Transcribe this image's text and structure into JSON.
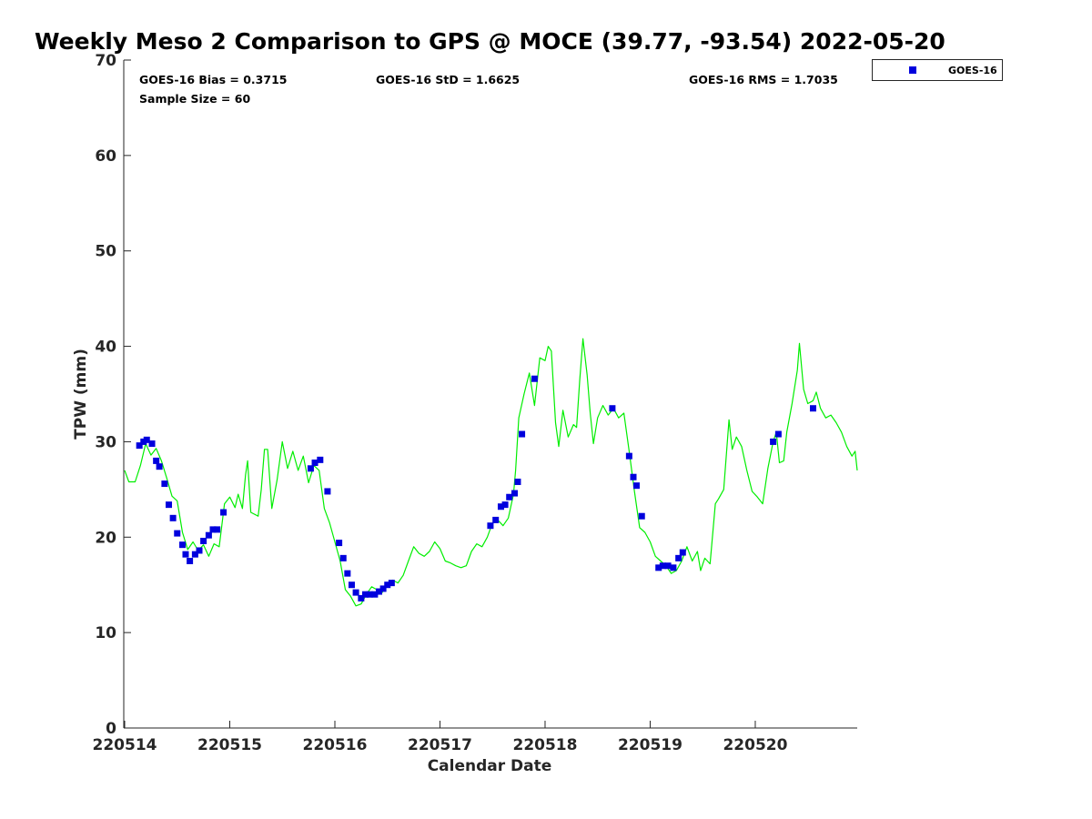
{
  "chart_data": {
    "type": "line+scatter",
    "title": "Weekly Meso 2 Comparison to GPS @ MOCE (39.77, -93.54) 2022-05-20",
    "xlabel": "Calendar Date",
    "ylabel": "TPW (mm)",
    "xlim": [
      0,
      6.97
    ],
    "ylim": [
      0,
      70
    ],
    "x_ticks": [
      {
        "value": 0,
        "label": "220514"
      },
      {
        "value": 1,
        "label": "220515"
      },
      {
        "value": 2,
        "label": "220516"
      },
      {
        "value": 3,
        "label": "220517"
      },
      {
        "value": 4,
        "label": "220518"
      },
      {
        "value": 5,
        "label": "220519"
      },
      {
        "value": 6,
        "label": "220520"
      }
    ],
    "y_ticks": [
      {
        "value": 0,
        "label": "0"
      },
      {
        "value": 10,
        "label": "10"
      },
      {
        "value": 20,
        "label": "20"
      },
      {
        "value": 30,
        "label": "30"
      },
      {
        "value": 40,
        "label": "40"
      },
      {
        "value": 50,
        "label": "50"
      },
      {
        "value": 60,
        "label": "60"
      },
      {
        "value": 70,
        "label": "70"
      }
    ],
    "stats": {
      "bias": "GOES-16 Bias = 0.3715",
      "std": "GOES-16 StD = 1.6625",
      "rms": "GOES-16 RMS = 1.7035",
      "sample": "Sample Size = 60"
    },
    "legend": {
      "label": "GOES-16",
      "position": "top-right-outside"
    },
    "colors": {
      "gps_line": "#00ee00",
      "goes_marker": "#0000dd",
      "axis": "#262626"
    },
    "series": [
      {
        "name": "GPS",
        "kind": "line",
        "points": [
          [
            0.0,
            27.0
          ],
          [
            0.04,
            25.8
          ],
          [
            0.1,
            25.8
          ],
          [
            0.15,
            27.5
          ],
          [
            0.2,
            29.8
          ],
          [
            0.25,
            28.6
          ],
          [
            0.3,
            29.3
          ],
          [
            0.35,
            28.0
          ],
          [
            0.4,
            26.2
          ],
          [
            0.45,
            24.3
          ],
          [
            0.5,
            23.8
          ],
          [
            0.55,
            20.5
          ],
          [
            0.6,
            18.7
          ],
          [
            0.65,
            19.5
          ],
          [
            0.7,
            18.6
          ],
          [
            0.75,
            19.2
          ],
          [
            0.8,
            18.0
          ],
          [
            0.85,
            19.3
          ],
          [
            0.9,
            19.0
          ],
          [
            0.95,
            23.5
          ],
          [
            1.0,
            24.2
          ],
          [
            1.05,
            23.1
          ],
          [
            1.08,
            24.5
          ],
          [
            1.12,
            23.0
          ],
          [
            1.15,
            26.5
          ],
          [
            1.17,
            28.0
          ],
          [
            1.2,
            22.6
          ],
          [
            1.27,
            22.2
          ],
          [
            1.3,
            25.0
          ],
          [
            1.33,
            29.2
          ],
          [
            1.36,
            29.2
          ],
          [
            1.4,
            23.0
          ],
          [
            1.45,
            26.0
          ],
          [
            1.5,
            30.0
          ],
          [
            1.55,
            27.2
          ],
          [
            1.6,
            29.0
          ],
          [
            1.65,
            27.0
          ],
          [
            1.7,
            28.5
          ],
          [
            1.75,
            25.7
          ],
          [
            1.8,
            27.5
          ],
          [
            1.85,
            27.0
          ],
          [
            1.9,
            23.0
          ],
          [
            1.95,
            21.5
          ],
          [
            2.0,
            19.5
          ],
          [
            2.05,
            17.5
          ],
          [
            2.1,
            14.5
          ],
          [
            2.15,
            13.8
          ],
          [
            2.2,
            12.8
          ],
          [
            2.25,
            13.0
          ],
          [
            2.3,
            14.0
          ],
          [
            2.35,
            14.8
          ],
          [
            2.4,
            14.5
          ],
          [
            2.45,
            14.2
          ],
          [
            2.5,
            15.0
          ],
          [
            2.55,
            15.5
          ],
          [
            2.6,
            15.2
          ],
          [
            2.65,
            16.0
          ],
          [
            2.7,
            17.5
          ],
          [
            2.75,
            19.0
          ],
          [
            2.8,
            18.3
          ],
          [
            2.85,
            18.0
          ],
          [
            2.9,
            18.5
          ],
          [
            2.95,
            19.5
          ],
          [
            3.0,
            18.8
          ],
          [
            3.05,
            17.5
          ],
          [
            3.1,
            17.3
          ],
          [
            3.15,
            17.0
          ],
          [
            3.2,
            16.8
          ],
          [
            3.25,
            17.0
          ],
          [
            3.3,
            18.5
          ],
          [
            3.35,
            19.3
          ],
          [
            3.4,
            19.0
          ],
          [
            3.45,
            20.0
          ],
          [
            3.5,
            21.5
          ],
          [
            3.55,
            21.8
          ],
          [
            3.6,
            21.2
          ],
          [
            3.65,
            22.0
          ],
          [
            3.7,
            24.5
          ],
          [
            3.72,
            27.0
          ],
          [
            3.75,
            32.5
          ],
          [
            3.8,
            35.0
          ],
          [
            3.85,
            37.2
          ],
          [
            3.9,
            33.8
          ],
          [
            3.95,
            38.8
          ],
          [
            4.0,
            38.5
          ],
          [
            4.03,
            40.0
          ],
          [
            4.06,
            39.5
          ],
          [
            4.1,
            32.0
          ],
          [
            4.13,
            29.5
          ],
          [
            4.17,
            33.3
          ],
          [
            4.22,
            30.5
          ],
          [
            4.27,
            31.8
          ],
          [
            4.3,
            31.5
          ],
          [
            4.33,
            36.5
          ],
          [
            4.36,
            40.8
          ],
          [
            4.4,
            37.0
          ],
          [
            4.43,
            33.0
          ],
          [
            4.46,
            29.8
          ],
          [
            4.5,
            32.5
          ],
          [
            4.55,
            33.8
          ],
          [
            4.6,
            32.8
          ],
          [
            4.65,
            33.5
          ],
          [
            4.7,
            32.5
          ],
          [
            4.75,
            33.0
          ],
          [
            4.8,
            29.0
          ],
          [
            4.85,
            24.8
          ],
          [
            4.9,
            21.0
          ],
          [
            4.95,
            20.5
          ],
          [
            5.0,
            19.5
          ],
          [
            5.05,
            18.0
          ],
          [
            5.1,
            17.5
          ],
          [
            5.15,
            17.0
          ],
          [
            5.2,
            16.2
          ],
          [
            5.25,
            16.5
          ],
          [
            5.3,
            17.5
          ],
          [
            5.35,
            19.0
          ],
          [
            5.4,
            17.5
          ],
          [
            5.45,
            18.5
          ],
          [
            5.48,
            16.5
          ],
          [
            5.52,
            17.8
          ],
          [
            5.57,
            17.2
          ],
          [
            5.62,
            23.5
          ],
          [
            5.65,
            24.0
          ],
          [
            5.7,
            25.0
          ],
          [
            5.75,
            32.3
          ],
          [
            5.78,
            29.2
          ],
          [
            5.82,
            30.5
          ],
          [
            5.87,
            29.5
          ],
          [
            5.92,
            27.0
          ],
          [
            5.97,
            24.8
          ],
          [
            6.02,
            24.2
          ],
          [
            6.07,
            23.5
          ],
          [
            6.12,
            27.2
          ],
          [
            6.17,
            30.0
          ],
          [
            6.2,
            31.0
          ],
          [
            6.23,
            27.8
          ],
          [
            6.27,
            28.0
          ],
          [
            6.3,
            31.0
          ],
          [
            6.35,
            34.0
          ],
          [
            6.4,
            37.5
          ],
          [
            6.42,
            40.3
          ],
          [
            6.46,
            35.5
          ],
          [
            6.5,
            34.0
          ],
          [
            6.55,
            34.3
          ],
          [
            6.58,
            35.2
          ],
          [
            6.62,
            33.5
          ],
          [
            6.67,
            32.5
          ],
          [
            6.72,
            32.8
          ],
          [
            6.77,
            32.0
          ],
          [
            6.82,
            31.0
          ],
          [
            6.87,
            29.5
          ],
          [
            6.92,
            28.5
          ],
          [
            6.95,
            29.0
          ],
          [
            6.97,
            27.0
          ]
        ]
      },
      {
        "name": "GOES-16",
        "kind": "scatter",
        "points": [
          [
            0.14,
            29.6
          ],
          [
            0.18,
            30.0
          ],
          [
            0.21,
            30.2
          ],
          [
            0.26,
            29.8
          ],
          [
            0.3,
            28.0
          ],
          [
            0.33,
            27.4
          ],
          [
            0.38,
            25.6
          ],
          [
            0.42,
            23.4
          ],
          [
            0.46,
            22.0
          ],
          [
            0.5,
            20.4
          ],
          [
            0.55,
            19.2
          ],
          [
            0.58,
            18.2
          ],
          [
            0.62,
            17.5
          ],
          [
            0.67,
            18.2
          ],
          [
            0.71,
            18.6
          ],
          [
            0.75,
            19.6
          ],
          [
            0.8,
            20.2
          ],
          [
            0.84,
            20.8
          ],
          [
            0.88,
            20.8
          ],
          [
            0.94,
            22.6
          ],
          [
            1.77,
            27.2
          ],
          [
            1.81,
            27.8
          ],
          [
            1.86,
            28.1
          ],
          [
            1.93,
            24.8
          ],
          [
            2.04,
            19.4
          ],
          [
            2.08,
            17.8
          ],
          [
            2.12,
            16.2
          ],
          [
            2.16,
            15.0
          ],
          [
            2.2,
            14.2
          ],
          [
            2.25,
            13.6
          ],
          [
            2.29,
            14.0
          ],
          [
            2.33,
            14.0
          ],
          [
            2.38,
            14.0
          ],
          [
            2.42,
            14.3
          ],
          [
            2.46,
            14.6
          ],
          [
            2.5,
            15.0
          ],
          [
            2.54,
            15.2
          ],
          [
            3.48,
            21.2
          ],
          [
            3.53,
            21.8
          ],
          [
            3.58,
            23.2
          ],
          [
            3.62,
            23.4
          ],
          [
            3.66,
            24.2
          ],
          [
            3.71,
            24.6
          ],
          [
            3.74,
            25.8
          ],
          [
            3.78,
            30.8
          ],
          [
            3.9,
            36.6
          ],
          [
            4.64,
            33.5
          ],
          [
            4.8,
            28.5
          ],
          [
            4.84,
            26.3
          ],
          [
            4.87,
            25.4
          ],
          [
            4.92,
            22.2
          ],
          [
            5.08,
            16.8
          ],
          [
            5.12,
            17.0
          ],
          [
            5.17,
            17.0
          ],
          [
            5.22,
            16.8
          ],
          [
            5.27,
            17.8
          ],
          [
            5.31,
            18.4
          ],
          [
            6.17,
            30.0
          ],
          [
            6.22,
            30.8
          ],
          [
            6.55,
            33.5
          ]
        ]
      }
    ]
  }
}
